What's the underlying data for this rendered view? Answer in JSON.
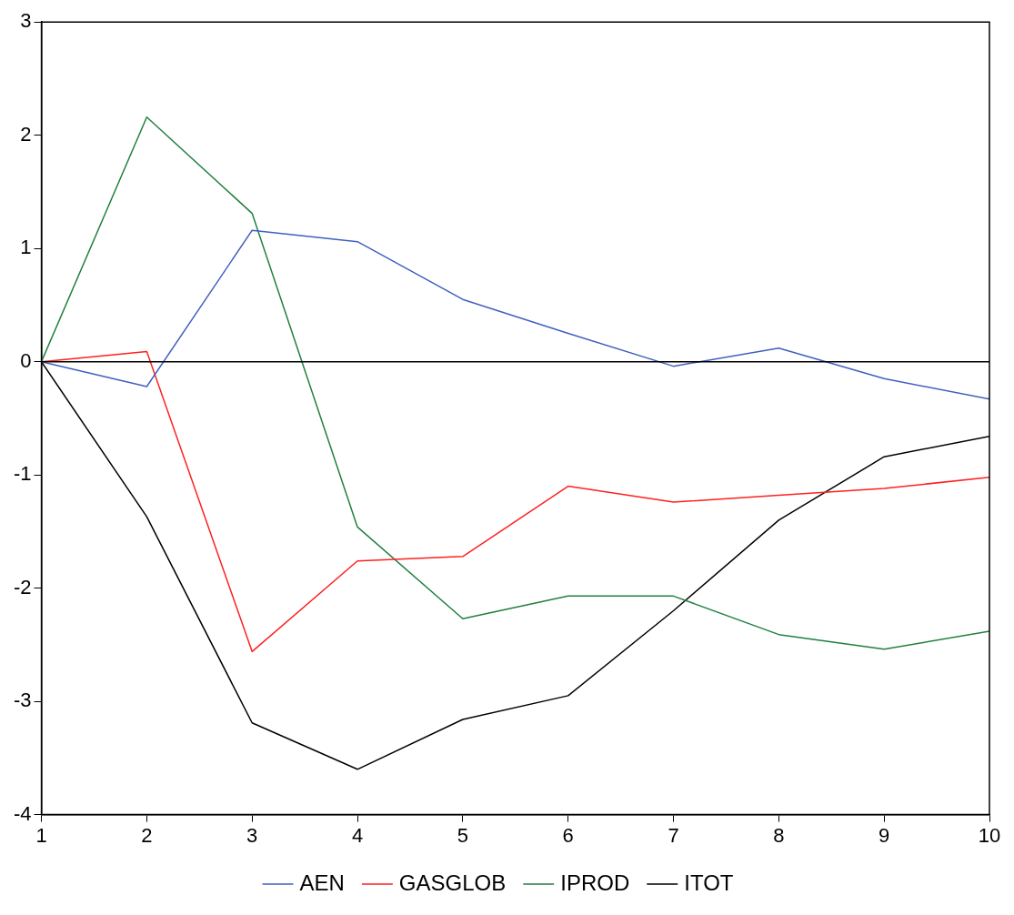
{
  "chart_data": {
    "type": "line",
    "x": [
      1,
      2,
      3,
      4,
      5,
      6,
      7,
      8,
      9,
      10
    ],
    "xlim": [
      1,
      10
    ],
    "xticks": [
      1,
      2,
      3,
      4,
      5,
      6,
      7,
      8,
      9,
      10
    ],
    "ylim": [
      -4,
      3
    ],
    "yticks": [
      -4,
      -3,
      -2,
      -1,
      0,
      1,
      2,
      3
    ],
    "grid": false,
    "legend": "bottom",
    "marker": "none",
    "line_style": "solid",
    "ref_lines": [
      {
        "axis": "y",
        "value": 0,
        "color": "#000000"
      }
    ],
    "series": [
      {
        "name": "AEN",
        "color": "#4060c0",
        "values": [
          0,
          -0.22,
          1.16,
          1.06,
          0.55,
          0.25,
          -0.04,
          0.12,
          -0.15,
          -0.33
        ]
      },
      {
        "name": "GASGLOB",
        "color": "#ff2020",
        "values": [
          0,
          0.09,
          -2.56,
          -1.76,
          -1.72,
          -1.1,
          -1.24,
          -1.18,
          -1.12,
          -1.02
        ]
      },
      {
        "name": "IPROD",
        "color": "#208040",
        "values": [
          0,
          2.16,
          1.31,
          -1.46,
          -2.27,
          -2.07,
          -2.07,
          -2.41,
          -2.54,
          -2.38
        ]
      },
      {
        "name": "ITOT",
        "color": "#000000",
        "values": [
          0,
          -1.37,
          -3.19,
          -3.6,
          -3.16,
          -2.95,
          -2.2,
          -1.4,
          -0.84,
          -0.66
        ]
      }
    ]
  }
}
